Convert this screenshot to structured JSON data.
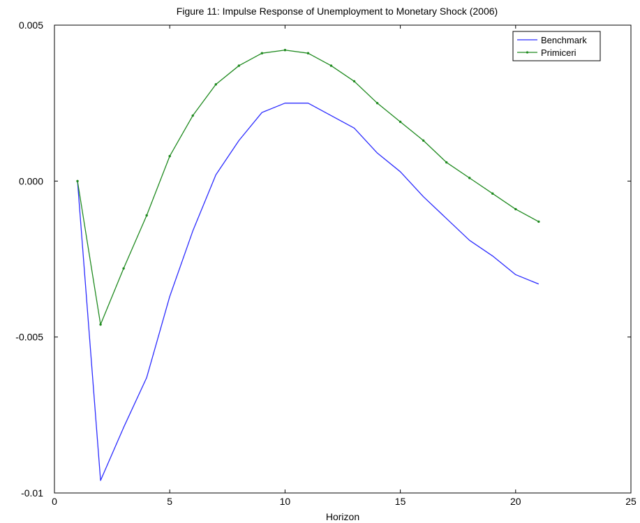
{
  "chart_data": {
    "type": "line",
    "title": "Figure 11: Impulse Response of Unemployment to Monetary Shock (2006)",
    "xlabel": "Horizon",
    "ylabel": "",
    "xlim": [
      0,
      25
    ],
    "ylim": [
      -0.01,
      0.005
    ],
    "xticks": [
      0,
      5,
      10,
      15,
      20,
      25
    ],
    "xtick_labels": [
      "0",
      "5",
      "10",
      "15",
      "20",
      "25"
    ],
    "yticks": [
      0.005,
      0,
      -0.005,
      -0.01
    ],
    "ytick_labels": [
      "0.005",
      "0.000",
      "-0.005",
      "-0.01"
    ],
    "grid": false,
    "legend_position": "top-right",
    "x": [
      1,
      2,
      3,
      4,
      5,
      6,
      7,
      8,
      9,
      10,
      11,
      12,
      13,
      14,
      15,
      16,
      17,
      18,
      19,
      20,
      21
    ],
    "series": [
      {
        "name": "Benchmark",
        "color": "#2b2bff",
        "markers": false,
        "values": [
          0.0,
          -0.0096,
          -0.0079,
          -0.0063,
          -0.0037,
          -0.0016,
          0.0002,
          0.0013,
          0.0022,
          0.0025,
          0.0025,
          0.0021,
          0.0017,
          0.0009,
          0.0003,
          -0.0005,
          -0.0012,
          -0.0019,
          -0.0024,
          -0.003,
          -0.0033
        ]
      },
      {
        "name": "Primiceri",
        "color": "#1f8a1f",
        "markers": true,
        "values": [
          0.0,
          -0.0046,
          -0.0028,
          -0.0011,
          0.0008,
          0.0021,
          0.0031,
          0.0037,
          0.0041,
          0.0042,
          0.0041,
          0.0037,
          0.0032,
          0.0025,
          0.0019,
          0.0013,
          0.0006,
          0.0001,
          -0.0004,
          -0.0009,
          -0.0013
        ]
      }
    ]
  }
}
